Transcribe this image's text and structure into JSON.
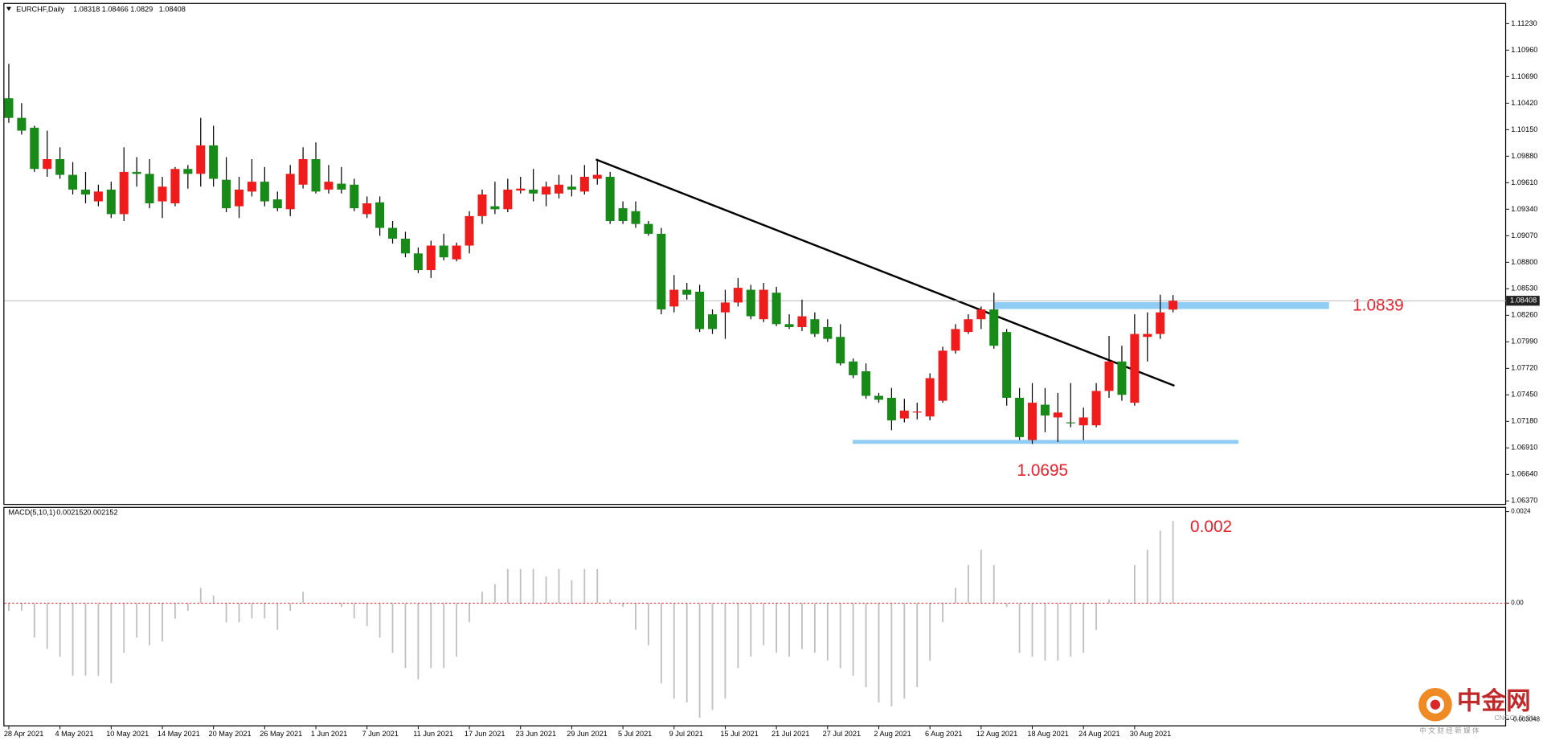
{
  "chart_data": [
    {
      "type": "candlestick",
      "title": "EURCHF,Daily",
      "categories": [
        "28 Apr 2021",
        null,
        null,
        null,
        "4 May 2021",
        null,
        null,
        null,
        "10 May 2021",
        null,
        null,
        null,
        "14 May 2021",
        null,
        null,
        null,
        "20 May 2021",
        null,
        null,
        null,
        "26 May 2021",
        null,
        null,
        null,
        "1 Jun 2021",
        null,
        null,
        null,
        "7 Jun 2021",
        null,
        null,
        null,
        "11 Jun 2021",
        null,
        null,
        null,
        "17 Jun 2021",
        null,
        null,
        null,
        "23 Jun 2021",
        null,
        null,
        null,
        "29 Jun 2021",
        null,
        null,
        null,
        "5 Jul 2021",
        null,
        null,
        null,
        "9 Jul 2021",
        null,
        null,
        null,
        "15 Jul 2021",
        null,
        null,
        null,
        "21 Jul 2021",
        null,
        null,
        null,
        "27 Jul 2021",
        null,
        null,
        null,
        "2 Aug 2021",
        null,
        null,
        null,
        "6 Aug 2021",
        null,
        null,
        null,
        "12 Aug 2021",
        null,
        null,
        null,
        "18 Aug 2021",
        null,
        null,
        null,
        "24 Aug 2021",
        null,
        null,
        null,
        "30 Aug 2021",
        null,
        null,
        null
      ],
      "open": [
        1.1047,
        1.1027,
        1.1017,
        1.0975,
        1.0985,
        1.0969,
        1.0954,
        1.0942,
        1.0954,
        1.0929,
        1.0972,
        1.097,
        1.0942,
        1.094,
        1.0975,
        1.097,
        1.0999,
        1.0964,
        1.0937,
        1.0952,
        1.0962,
        1.0944,
        1.0934,
        1.0959,
        1.0985,
        1.0954,
        1.096,
        1.0959,
        1.0929,
        1.0941,
        1.0915,
        1.0904,
        1.0889,
        1.0872,
        1.0897,
        1.0883,
        1.0897,
        1.0927,
        1.0937,
        1.0934,
        1.0953,
        1.0954,
        1.0949,
        1.095,
        1.0957,
        1.0952,
        1.0965,
        1.0967,
        1.0935,
        1.0932,
        1.0919,
        1.0909,
        1.0835,
        1.0852,
        1.085,
        1.0827,
        1.0829,
        1.0839,
        1.0852,
        1.0822,
        1.0849,
        1.0817,
        1.0814,
        1.0822,
        1.0814,
        1.0804,
        1.0779,
        1.0769,
        1.0744,
        1.0742,
        1.0721,
        1.0727,
        1.0723,
        1.0739,
        1.079,
        1.0809,
        1.0822,
        1.0832,
        1.0809,
        1.0742,
        1.0699,
        1.0735,
        1.0722,
        1.0717,
        1.0714,
        1.0714,
        1.0749,
        1.0779,
        1.0737,
        1.0804,
        1.0807,
        1.08318
      ],
      "high": [
        1.1082,
        1.1042,
        1.1019,
        1.1014,
        1.0997,
        1.0982,
        1.0972,
        1.0959,
        1.0962,
        1.0997,
        1.0987,
        1.0985,
        1.0967,
        1.0977,
        1.0979,
        1.1027,
        1.1019,
        1.0987,
        1.0967,
        1.0985,
        1.0977,
        1.0952,
        1.0979,
        1.0997,
        1.1002,
        1.0979,
        1.0977,
        1.0965,
        1.0947,
        1.0947,
        1.0922,
        1.0911,
        1.0895,
        1.0902,
        1.0909,
        1.09,
        1.0932,
        1.0954,
        1.0962,
        1.0965,
        1.0967,
        1.0975,
        1.0962,
        1.0969,
        1.0969,
        1.0979,
        1.0984,
        1.0972,
        1.0942,
        1.0942,
        1.0922,
        1.0915,
        1.0867,
        1.0859,
        1.0857,
        1.0832,
        1.0852,
        1.0864,
        1.0857,
        1.0859,
        1.0855,
        1.0827,
        1.0842,
        1.0829,
        1.0822,
        1.0817,
        1.0782,
        1.0777,
        1.0747,
        1.0752,
        1.0741,
        1.0737,
        1.0767,
        1.0794,
        1.0817,
        1.0827,
        1.0835,
        1.0849,
        1.0812,
        1.0752,
        1.0757,
        1.0752,
        1.0747,
        1.0757,
        1.0732,
        1.0757,
        1.0805,
        1.0795,
        1.0827,
        1.0829,
        1.0847,
        1.08466
      ],
      "low": [
        1.1022,
        1.101,
        1.0972,
        1.0967,
        1.0965,
        1.0949,
        1.094,
        1.0937,
        1.0925,
        1.0922,
        1.0957,
        1.0935,
        1.0925,
        1.0937,
        1.0955,
        1.0957,
        1.0957,
        1.0931,
        1.0925,
        1.0947,
        1.0937,
        1.0932,
        1.0927,
        1.0955,
        1.095,
        1.095,
        1.095,
        1.0932,
        1.0925,
        1.0907,
        1.0899,
        1.0885,
        1.0869,
        1.0864,
        1.0882,
        1.0881,
        1.0889,
        1.0919,
        1.0929,
        1.0931,
        1.095,
        1.0942,
        1.0937,
        1.0945,
        1.0947,
        1.0949,
        1.0959,
        1.0919,
        1.0919,
        1.0915,
        1.0907,
        1.0827,
        1.0829,
        1.0842,
        1.0809,
        1.0807,
        1.0802,
        1.0835,
        1.0822,
        1.0819,
        1.0815,
        1.0812,
        1.081,
        1.0804,
        1.0799,
        1.0775,
        1.0762,
        1.0741,
        1.0737,
        1.0709,
        1.0717,
        1.072,
        1.0719,
        1.0737,
        1.0787,
        1.0807,
        1.0812,
        1.0792,
        1.0734,
        1.0699,
        1.0695,
        1.0707,
        1.0697,
        1.0712,
        1.0699,
        1.0712,
        1.0742,
        1.0739,
        1.0734,
        1.0779,
        1.0802,
        1.0829
      ],
      "close": [
        1.1027,
        1.1014,
        1.0975,
        1.0985,
        1.0969,
        1.0954,
        1.0949,
        1.0952,
        1.0929,
        1.0972,
        1.097,
        1.094,
        1.0957,
        1.0975,
        1.097,
        1.0999,
        1.0965,
        1.0935,
        1.0954,
        1.0962,
        1.0942,
        1.0935,
        1.097,
        1.0985,
        1.0952,
        1.0962,
        1.0954,
        1.0935,
        1.094,
        1.0915,
        1.0904,
        1.0889,
        1.0872,
        1.0897,
        1.0885,
        1.0897,
        1.0927,
        1.0949,
        1.0934,
        1.0954,
        1.0955,
        1.095,
        1.0957,
        1.0959,
        1.0954,
        1.0967,
        1.0969,
        1.0922,
        1.0922,
        1.0919,
        1.0909,
        1.0832,
        1.0852,
        1.0847,
        1.0812,
        1.0812,
        1.0839,
        1.0854,
        1.0825,
        1.0852,
        1.0817,
        1.0814,
        1.0825,
        1.0807,
        1.0802,
        1.0777,
        1.0765,
        1.0744,
        1.074,
        1.0719,
        1.0729,
        1.0728,
        1.0762,
        1.079,
        1.0812,
        1.0822,
        1.0832,
        1.0795,
        1.0742,
        1.0702,
        1.0737,
        1.0724,
        1.0727,
        1.0716,
        1.0722,
        1.0749,
        1.0779,
        1.0745,
        1.0807,
        1.0807,
        1.0829,
        1.08408
      ],
      "up_color": "#f01c1c",
      "down_color": "#178a17",
      "wick_color": "#000000",
      "ylim": [
        1.0634,
        1.1142
      ],
      "yticks": [
        {
          "value": 1.1123,
          "label": "1.11230"
        },
        {
          "value": 1.1096,
          "label": "1.10960"
        },
        {
          "value": 1.1069,
          "label": "1.10690"
        },
        {
          "value": 1.1042,
          "label": "1.10420"
        },
        {
          "value": 1.1015,
          "label": "1.10150"
        },
        {
          "value": 1.0988,
          "label": "1.09880"
        },
        {
          "value": 1.0961,
          "label": "1.09610"
        },
        {
          "value": 1.0934,
          "label": "1.09340"
        },
        {
          "value": 1.0907,
          "label": "1.09070"
        },
        {
          "value": 1.088,
          "label": "1.08800"
        },
        {
          "value": 1.0853,
          "label": "1.08530"
        },
        {
          "value": 1.0826,
          "label": "1.08260"
        },
        {
          "value": 1.0799,
          "label": "1.07990"
        },
        {
          "value": 1.0772,
          "label": "1.07720"
        },
        {
          "value": 1.0745,
          "label": "1.07450"
        },
        {
          "value": 1.0718,
          "label": "1.07180"
        },
        {
          "value": 1.0691,
          "label": "1.06910"
        },
        {
          "value": 1.0664,
          "label": "1.06640"
        },
        {
          "value": 1.0637,
          "label": "1.06370"
        }
      ],
      "grid": false,
      "annotations": [
        "1.0839",
        "1.0695"
      ]
    },
    {
      "type": "bar",
      "title": "MACD(5,10,1)",
      "values": [
        -0.0002,
        -0.0002,
        -0.0009,
        -0.0012,
        -0.0014,
        -0.0019,
        -0.0019,
        -0.0019,
        -0.0021,
        -0.0013,
        -0.0009,
        -0.0011,
        -0.001,
        -0.0004,
        -0.0002,
        0.0004,
        0.0002,
        -0.0005,
        -0.0005,
        -0.0004,
        -0.0004,
        -0.0007,
        -0.0002,
        0.0003,
        0,
        0,
        -0.0001,
        -0.0004,
        -0.0006,
        -0.0009,
        -0.0013,
        -0.0017,
        -0.002,
        -0.0017,
        -0.0017,
        -0.0014,
        -0.0005,
        0.0003,
        0.0005,
        0.0009,
        0.0009,
        0.0009,
        0.0007,
        0.0009,
        0.0006,
        0.0009,
        0.0009,
        0.0001,
        -0.0001,
        -0.0007,
        -0.0011,
        -0.0021,
        -0.0025,
        -0.0026,
        -0.003,
        -0.0028,
        -0.0025,
        -0.0017,
        -0.0014,
        -0.0011,
        -0.0013,
        -0.0014,
        -0.0012,
        -0.0013,
        -0.0015,
        -0.0017,
        -0.0019,
        -0.0022,
        -0.0026,
        -0.0027,
        -0.0025,
        -0.0022,
        -0.0015,
        -0.0005,
        0.0004,
        0.001,
        0.0014,
        0.001,
        -0.0001,
        -0.0013,
        -0.0014,
        -0.0015,
        -0.0015,
        -0.0014,
        -0.0013,
        -0.0007,
        0.0001,
        0,
        0.001,
        0.0014,
        0.0019,
        0.002152
      ],
      "color": "#c0c0c0",
      "zero_line_color": "#e03030",
      "ylim": [
        -0.0032,
        0.0025
      ],
      "yticks": [
        0.0024,
        {
          "value": 0,
          "label": "0.00"
        },
        -0.003048
      ],
      "grid": false,
      "annotations": [
        "0.002"
      ]
    }
  ],
  "watermark": {
    "name": "中金网",
    "domain": "CNGOLD.CN",
    "tagline": "中 文 财 经 新 媒 体"
  }
}
